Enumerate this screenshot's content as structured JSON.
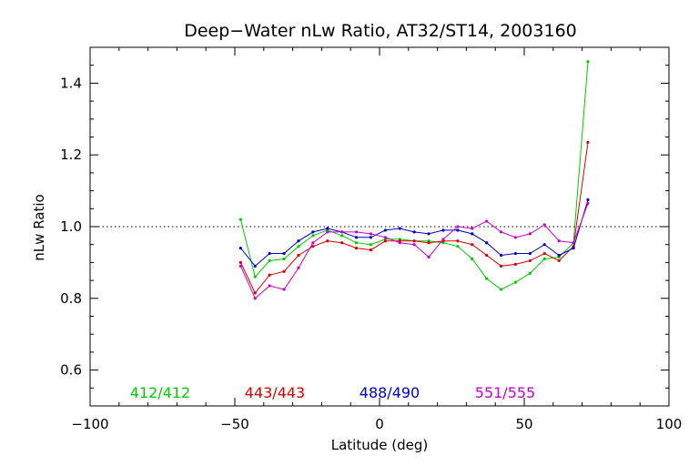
{
  "chart_data": {
    "type": "line",
    "title": "Deep−Water nLw Ratio, AT32/ST14, 2003160",
    "xlabel": "Latitude (deg)",
    "ylabel": "nLw Ratio",
    "xlim": [
      -100,
      100
    ],
    "ylim": [
      0.5,
      1.5
    ],
    "xticks": [
      -100,
      -50,
      0,
      50,
      100
    ],
    "xtick_labels": [
      "−100",
      "−50",
      "0",
      "50",
      "100"
    ],
    "yticks": [
      0.6,
      0.8,
      1.0,
      1.2,
      1.4
    ],
    "ytick_labels": [
      "0.6",
      "0.8",
      "1.0",
      "1.2",
      "1.4"
    ],
    "reference_line": 1.0,
    "grid": false,
    "legend_position": "bottom",
    "series": [
      {
        "name": "412/412",
        "color": "#00cc00",
        "x": [
          -48,
          -43,
          -38,
          -33,
          -28,
          -23,
          -18,
          -13,
          -8,
          -3,
          2,
          7,
          12,
          17,
          22,
          27,
          32,
          37,
          42,
          47,
          52,
          57,
          62,
          67,
          72
        ],
        "y": [
          1.02,
          0.86,
          0.905,
          0.91,
          0.945,
          0.975,
          0.99,
          0.975,
          0.955,
          0.95,
          0.965,
          0.965,
          0.96,
          0.96,
          0.955,
          0.945,
          0.91,
          0.855,
          0.825,
          0.845,
          0.87,
          0.91,
          0.915,
          0.955,
          1.46
        ]
      },
      {
        "name": "443/443",
        "color": "#dd0000",
        "x": [
          -48,
          -43,
          -38,
          -33,
          -28,
          -23,
          -18,
          -13,
          -8,
          -3,
          2,
          7,
          12,
          17,
          22,
          27,
          32,
          37,
          42,
          47,
          52,
          57,
          62,
          67,
          72
        ],
        "y": [
          0.9,
          0.815,
          0.865,
          0.875,
          0.92,
          0.945,
          0.96,
          0.955,
          0.94,
          0.935,
          0.96,
          0.96,
          0.96,
          0.955,
          0.96,
          0.96,
          0.95,
          0.92,
          0.89,
          0.895,
          0.905,
          0.925,
          0.905,
          0.945,
          1.235
        ]
      },
      {
        "name": "488/490",
        "color": "#0000cc",
        "x": [
          -48,
          -43,
          -38,
          -33,
          -28,
          -23,
          -18,
          -13,
          -8,
          -3,
          2,
          7,
          12,
          17,
          22,
          27,
          32,
          37,
          42,
          47,
          52,
          57,
          62,
          67,
          72
        ],
        "y": [
          0.94,
          0.89,
          0.925,
          0.925,
          0.96,
          0.985,
          0.995,
          0.985,
          0.97,
          0.97,
          0.99,
          0.995,
          0.985,
          0.98,
          0.99,
          0.99,
          0.98,
          0.955,
          0.92,
          0.925,
          0.925,
          0.95,
          0.92,
          0.94,
          1.075
        ]
      },
      {
        "name": "551/555",
        "color": "#cc00cc",
        "x": [
          -48,
          -43,
          -38,
          -33,
          -28,
          -23,
          -18,
          -13,
          -8,
          -3,
          2,
          7,
          12,
          17,
          22,
          27,
          32,
          37,
          42,
          47,
          52,
          57,
          62,
          67,
          72
        ],
        "y": [
          0.89,
          0.8,
          0.835,
          0.825,
          0.885,
          0.955,
          0.985,
          0.985,
          0.985,
          0.98,
          0.97,
          0.955,
          0.95,
          0.915,
          0.965,
          1.0,
          0.995,
          1.015,
          0.985,
          0.97,
          0.98,
          1.005,
          0.96,
          0.955,
          1.065
        ]
      }
    ]
  }
}
